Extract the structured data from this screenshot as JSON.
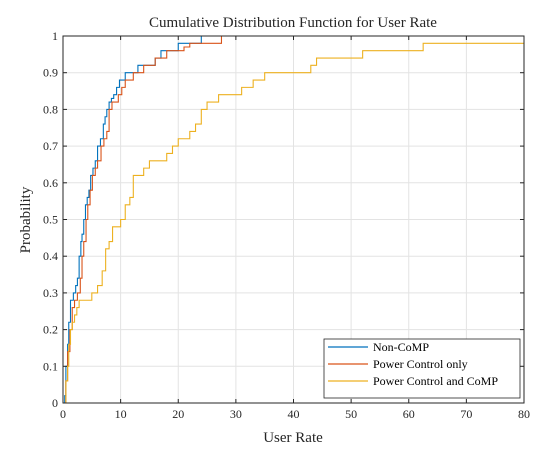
{
  "chart_data": {
    "type": "line",
    "step": true,
    "title": "Cumulative Distribution Function for User Rate",
    "xlabel": "User Rate",
    "ylabel": "Probability",
    "xlim": [
      0,
      80
    ],
    "ylim": [
      0,
      1
    ],
    "xticks": [
      0,
      10,
      20,
      30,
      40,
      50,
      60,
      70,
      80
    ],
    "yticks": [
      0,
      0.1,
      0.2,
      0.3,
      0.4,
      0.5,
      0.6,
      0.7,
      0.8,
      0.9,
      1
    ],
    "xtick_labels": [
      "0",
      "10",
      "20",
      "30",
      "40",
      "50",
      "60",
      "70",
      "80"
    ],
    "ytick_labels": [
      "0",
      "0.1",
      "0.2",
      "0.3",
      "0.4",
      "0.5",
      "0.6",
      "0.7",
      "0.8",
      "0.9",
      "1"
    ],
    "grid": true,
    "legend_position": "bottom-right",
    "series": [
      {
        "name": "Non-CoMP",
        "color": "#0072BD",
        "x": [
          0,
          0.3,
          0.5,
          0.8,
          1.0,
          1.3,
          1.8,
          2.2,
          2.5,
          2.8,
          3.1,
          3.3,
          3.6,
          3.9,
          4.2,
          4.5,
          4.8,
          5.2,
          5.6,
          6.0,
          6.5,
          7.0,
          7.3,
          7.6,
          8.0,
          8.4,
          8.8,
          9.3,
          9.8,
          10.3,
          10.8,
          11.4,
          12.0,
          13.0,
          14.0,
          15.0,
          16.0,
          17.0,
          18.0,
          19.0,
          20.0,
          21.0,
          22.0,
          23.0,
          24.0
        ],
        "y": [
          0,
          0.02,
          0.1,
          0.16,
          0.22,
          0.28,
          0.3,
          0.32,
          0.34,
          0.4,
          0.44,
          0.46,
          0.5,
          0.54,
          0.56,
          0.58,
          0.62,
          0.64,
          0.66,
          0.7,
          0.72,
          0.76,
          0.78,
          0.8,
          0.82,
          0.83,
          0.84,
          0.86,
          0.88,
          0.88,
          0.9,
          0.9,
          0.9,
          0.92,
          0.92,
          0.92,
          0.94,
          0.96,
          0.96,
          0.96,
          0.98,
          0.98,
          0.98,
          0.98,
          1
        ]
      },
      {
        "name": "Power Control only",
        "color": "#D95319",
        "x": [
          0,
          0.5,
          0.8,
          1.2,
          1.6,
          2.0,
          2.5,
          3.0,
          3.3,
          3.6,
          4.0,
          4.3,
          4.7,
          5.1,
          5.6,
          6.0,
          6.6,
          7.1,
          7.6,
          8.0,
          8.5,
          9.0,
          9.6,
          10.2,
          10.8,
          11.5,
          12.2,
          13.0,
          14.0,
          15.0,
          16.0,
          17.0,
          18.0,
          19.0,
          20.0,
          21.0,
          22.0,
          23.0,
          24.0,
          25.0,
          26.0,
          27.5
        ],
        "y": [
          0,
          0.06,
          0.14,
          0.2,
          0.26,
          0.28,
          0.3,
          0.34,
          0.4,
          0.44,
          0.5,
          0.54,
          0.58,
          0.62,
          0.64,
          0.66,
          0.7,
          0.72,
          0.74,
          0.8,
          0.82,
          0.82,
          0.84,
          0.86,
          0.88,
          0.88,
          0.9,
          0.9,
          0.92,
          0.92,
          0.94,
          0.94,
          0.96,
          0.96,
          0.96,
          0.97,
          0.98,
          0.98,
          0.98,
          0.98,
          0.98,
          1
        ]
      },
      {
        "name": "Power Control and CoMP",
        "color": "#EDB120",
        "x": [
          0,
          0.5,
          0.8,
          1.0,
          1.3,
          1.6,
          2.0,
          2.4,
          2.8,
          3.2,
          4.0,
          5.0,
          6.0,
          6.8,
          7.4,
          8.0,
          8.6,
          9.2,
          10.0,
          10.8,
          11.6,
          12.2,
          13.0,
          14.0,
          15.0,
          16.0,
          17.0,
          18.0,
          19.0,
          20.0,
          21.0,
          22.0,
          23.0,
          24.0,
          25.0,
          26.0,
          27.0,
          28.0,
          29.0,
          30.0,
          31.0,
          32.0,
          33.0,
          34.0,
          35.0,
          37.0,
          40.0,
          42.0,
          43.0,
          44.0,
          48.0,
          50.0,
          52.0,
          58.0,
          62.5,
          68.0,
          75.0,
          80.0
        ],
        "y": [
          0,
          0.06,
          0.1,
          0.16,
          0.2,
          0.22,
          0.24,
          0.26,
          0.28,
          0.28,
          0.28,
          0.3,
          0.32,
          0.36,
          0.42,
          0.44,
          0.48,
          0.48,
          0.5,
          0.54,
          0.56,
          0.62,
          0.62,
          0.64,
          0.66,
          0.66,
          0.66,
          0.68,
          0.7,
          0.72,
          0.72,
          0.74,
          0.76,
          0.8,
          0.82,
          0.82,
          0.84,
          0.84,
          0.84,
          0.84,
          0.86,
          0.86,
          0.88,
          0.88,
          0.9,
          0.9,
          0.9,
          0.9,
          0.92,
          0.94,
          0.94,
          0.94,
          0.96,
          0.96,
          0.98,
          0.98,
          0.98,
          0.98
        ]
      }
    ]
  }
}
